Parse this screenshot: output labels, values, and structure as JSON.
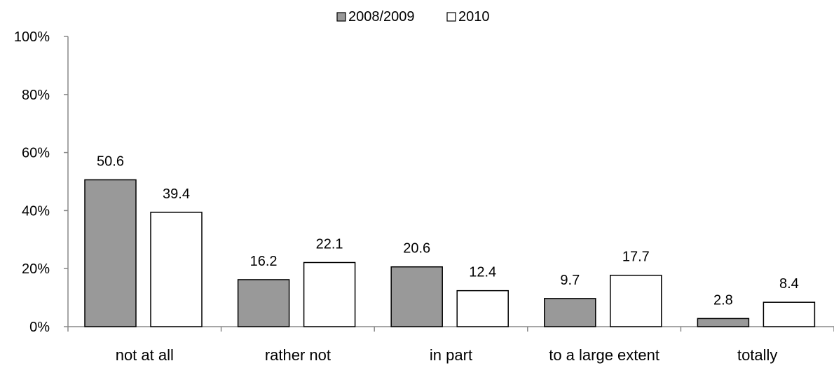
{
  "chart_data": {
    "type": "bar",
    "categories": [
      "not at all",
      "rather not",
      "in part",
      "to a large extent",
      "totally"
    ],
    "series": [
      {
        "name": "2008/2009",
        "values": [
          50.6,
          16.2,
          20.6,
          9.7,
          2.8
        ],
        "color": "#999999"
      },
      {
        "name": "2010",
        "values": [
          39.4,
          22.1,
          12.4,
          17.7,
          8.4
        ],
        "color": "#ffffff"
      }
    ],
    "data_labels": [
      [
        "50.6",
        "16.2",
        "20.6",
        "9.7",
        "2.8"
      ],
      [
        "39.4",
        "22.1",
        "12.4",
        "17.7",
        "8.4"
      ]
    ],
    "y_ticks": [
      "0%",
      "20%",
      "40%",
      "60%",
      "80%",
      "100%"
    ],
    "ylim": [
      0,
      100
    ],
    "title": "",
    "xlabel": "",
    "ylabel": "",
    "legend_position": "top-center",
    "grid": false,
    "bar_outline_color": "#000000",
    "axis_color": "#888888"
  }
}
